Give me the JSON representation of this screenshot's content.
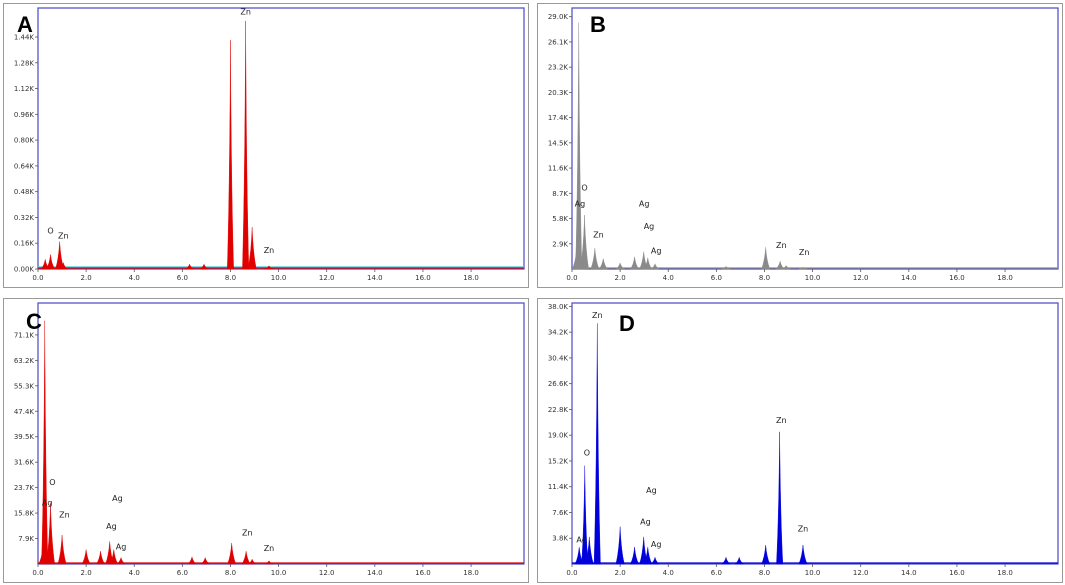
{
  "chart_data": [
    {
      "type": "area",
      "panel_label": "A",
      "color": "#e00000",
      "background_trace_color": "#5fd4d8",
      "x_ticks": [
        "0.0",
        "2.0",
        "4.0",
        "6.0",
        "8.0",
        "10.0",
        "12.0",
        "14.0",
        "16.0",
        "18.0"
      ],
      "y_ticks": [
        "0.00K",
        "0.16K",
        "0.32K",
        "0.48K",
        "0.64K",
        "0.80K",
        "0.96K",
        "1.12K",
        "1.28K",
        "1.44K"
      ],
      "xlim": [
        0,
        20.2
      ],
      "ylim": [
        0,
        1.62
      ],
      "peaks": [
        {
          "x": 0.3,
          "y": 0.06
        },
        {
          "x": 0.52,
          "y": 0.09
        },
        {
          "x": 0.9,
          "y": 0.17
        },
        {
          "x": 1.05,
          "y": 0.04
        },
        {
          "x": 6.3,
          "y": 0.03
        },
        {
          "x": 6.9,
          "y": 0.03
        },
        {
          "x": 8.0,
          "y": 1.42
        },
        {
          "x": 8.63,
          "y": 1.54
        },
        {
          "x": 8.9,
          "y": 0.26
        },
        {
          "x": 9.6,
          "y": 0.02
        }
      ],
      "element_labels": [
        {
          "text": "O",
          "x": 0.52,
          "y": 0.22
        },
        {
          "text": "Zn",
          "x": 1.05,
          "y": 0.19
        },
        {
          "text": "Zn",
          "x": 8.63,
          "y": 1.58
        },
        {
          "text": "Zn",
          "x": 9.6,
          "y": 0.1
        }
      ]
    },
    {
      "type": "area",
      "panel_label": "B",
      "color": "#8a8a8a",
      "x_ticks": [
        "0.0",
        "2.0",
        "4.0",
        "6.0",
        "8.0",
        "10.0",
        "12.0",
        "14.0",
        "16.0",
        "18.0"
      ],
      "y_ticks": [
        "2.9K",
        "5.8K",
        "8.7K",
        "11.6K",
        "14.5K",
        "17.4K",
        "20.3K",
        "23.2K",
        "26.1K",
        "29.0K"
      ],
      "xlim": [
        0,
        20.2
      ],
      "ylim": [
        0,
        30.0
      ],
      "peaks": [
        {
          "x": 0.18,
          "y": 2.0
        },
        {
          "x": 0.28,
          "y": 28.3
        },
        {
          "x": 0.52,
          "y": 6.2
        },
        {
          "x": 0.95,
          "y": 2.4
        },
        {
          "x": 1.3,
          "y": 1.2
        },
        {
          "x": 2.0,
          "y": 0.7
        },
        {
          "x": 2.6,
          "y": 1.4
        },
        {
          "x": 2.98,
          "y": 2.0
        },
        {
          "x": 3.15,
          "y": 1.3
        },
        {
          "x": 3.45,
          "y": 0.6
        },
        {
          "x": 6.4,
          "y": 0.3
        },
        {
          "x": 8.05,
          "y": 2.5
        },
        {
          "x": 8.65,
          "y": 0.9
        },
        {
          "x": 8.9,
          "y": 0.4
        },
        {
          "x": 9.6,
          "y": 0.2
        }
      ],
      "element_labels": [
        {
          "text": "O",
          "x": 0.52,
          "y": 9.0
        },
        {
          "text": "Ag",
          "x": 0.33,
          "y": 7.2
        },
        {
          "text": "Zn",
          "x": 1.1,
          "y": 3.6
        },
        {
          "text": "Ag",
          "x": 3.0,
          "y": 7.2
        },
        {
          "text": "Ag",
          "x": 3.2,
          "y": 4.6
        },
        {
          "text": "Ag",
          "x": 3.5,
          "y": 1.8
        },
        {
          "text": "Zn",
          "x": 8.7,
          "y": 2.4
        },
        {
          "text": "Zn",
          "x": 9.65,
          "y": 1.6
        }
      ]
    },
    {
      "type": "area",
      "panel_label": "C",
      "color": "#e00000",
      "x_ticks": [
        "0.0",
        "2.0",
        "4.0",
        "6.0",
        "8.0",
        "10.0",
        "12.0",
        "14.0",
        "16.0",
        "18.0"
      ],
      "y_ticks": [
        "7.9K",
        "15.8K",
        "23.7K",
        "31.6K",
        "39.5K",
        "47.4K",
        "55.3K",
        "63.2K",
        "71.1K"
      ],
      "xlim": [
        0,
        20.2
      ],
      "ylim": [
        0,
        81.0
      ],
      "peaks": [
        {
          "x": 0.2,
          "y": 5.0
        },
        {
          "x": 0.28,
          "y": 75.5
        },
        {
          "x": 0.52,
          "y": 19.0
        },
        {
          "x": 1.0,
          "y": 9.0
        },
        {
          "x": 2.0,
          "y": 4.5
        },
        {
          "x": 2.6,
          "y": 4.0
        },
        {
          "x": 2.98,
          "y": 7.0
        },
        {
          "x": 3.15,
          "y": 4.5
        },
        {
          "x": 3.45,
          "y": 2.0
        },
        {
          "x": 6.4,
          "y": 2.2
        },
        {
          "x": 6.95,
          "y": 2.0
        },
        {
          "x": 8.05,
          "y": 6.5
        },
        {
          "x": 8.65,
          "y": 4.0
        },
        {
          "x": 8.9,
          "y": 1.5
        },
        {
          "x": 9.6,
          "y": 1.0
        }
      ],
      "element_labels": [
        {
          "text": "O",
          "x": 0.6,
          "y": 24.5
        },
        {
          "text": "Ag",
          "x": 0.38,
          "y": 18.2
        },
        {
          "text": "Zn",
          "x": 1.1,
          "y": 14.5
        },
        {
          "text": "Ag",
          "x": 3.3,
          "y": 19.5
        },
        {
          "text": "Ag",
          "x": 3.05,
          "y": 10.8
        },
        {
          "text": "Ag",
          "x": 3.45,
          "y": 4.5
        },
        {
          "text": "Zn",
          "x": 8.7,
          "y": 8.8
        },
        {
          "text": "Zn",
          "x": 9.6,
          "y": 4.0
        }
      ]
    },
    {
      "type": "area",
      "panel_label": "D",
      "color": "#0000dd",
      "x_ticks": [
        "0.0",
        "2.0",
        "4.0",
        "6.0",
        "8.0",
        "10.0",
        "12.0",
        "14.0",
        "16.0",
        "18.0"
      ],
      "y_ticks": [
        "3.8K",
        "7.6K",
        "11.4K",
        "15.2K",
        "19.0K",
        "22.8K",
        "26.6K",
        "30.4K",
        "34.2K",
        "38.0K"
      ],
      "xlim": [
        0,
        20.2
      ],
      "ylim": [
        0,
        38.5
      ],
      "peaks": [
        {
          "x": 0.3,
          "y": 2.5
        },
        {
          "x": 0.53,
          "y": 14.5
        },
        {
          "x": 0.72,
          "y": 4.0
        },
        {
          "x": 1.05,
          "y": 35.5
        },
        {
          "x": 2.0,
          "y": 5.5
        },
        {
          "x": 2.6,
          "y": 2.5
        },
        {
          "x": 2.98,
          "y": 4.0
        },
        {
          "x": 3.15,
          "y": 2.5
        },
        {
          "x": 3.45,
          "y": 1.0
        },
        {
          "x": 6.4,
          "y": 1.0
        },
        {
          "x": 6.95,
          "y": 1.0
        },
        {
          "x": 8.05,
          "y": 2.8
        },
        {
          "x": 8.63,
          "y": 19.5
        },
        {
          "x": 9.6,
          "y": 2.8
        }
      ],
      "element_labels": [
        {
          "text": "Zn",
          "x": 1.05,
          "y": 36.3
        },
        {
          "text": "O",
          "x": 0.62,
          "y": 16.0
        },
        {
          "text": "Ag",
          "x": 0.4,
          "y": 3.2
        },
        {
          "text": "Ag",
          "x": 3.3,
          "y": 10.5
        },
        {
          "text": "Ag",
          "x": 3.05,
          "y": 5.8
        },
        {
          "text": "Ag",
          "x": 3.5,
          "y": 2.5
        },
        {
          "text": "Zn",
          "x": 8.7,
          "y": 20.8
        },
        {
          "text": "Zn",
          "x": 9.6,
          "y": 4.8
        }
      ]
    }
  ]
}
